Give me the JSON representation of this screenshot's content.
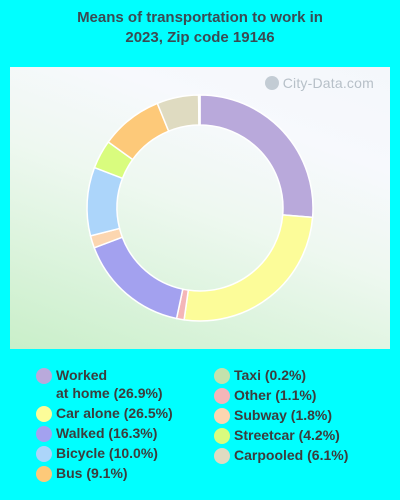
{
  "title_line1": "Means of transportation to work in",
  "title_line2": "2023, Zip code 19146",
  "watermark": "City-Data.com",
  "chart_data": {
    "type": "pie",
    "donut": true,
    "title": "Means of transportation to work in 2023, Zip code 19146",
    "unit": "%",
    "slices": [
      {
        "label": "Worked at home",
        "value": 26.9,
        "color": "#b9a9db"
      },
      {
        "label": "Car alone",
        "value": 26.5,
        "color": "#fcfc99"
      },
      {
        "label": "Other",
        "value": 1.1,
        "color": "#f4b6b8"
      },
      {
        "label": "Walked",
        "value": 16.3,
        "color": "#a3a1ef"
      },
      {
        "label": "Subway",
        "value": 1.8,
        "color": "#fcd6b0"
      },
      {
        "label": "Bicycle",
        "value": 10.0,
        "color": "#acd5fa"
      },
      {
        "label": "Streetcar",
        "value": 4.2,
        "color": "#d9fc7e"
      },
      {
        "label": "Bus",
        "value": 9.1,
        "color": "#fdc979"
      },
      {
        "label": "Carpooled",
        "value": 6.1,
        "color": "#dfdbc1"
      },
      {
        "label": "Taxi",
        "value": 0.2,
        "color": "#c3e2ac"
      }
    ]
  },
  "legend": {
    "left": [
      {
        "line1": "Worked",
        "line2": "at home (26.9%)",
        "color": "#b9a9db"
      },
      {
        "line1": "Car alone (26.5%)",
        "color": "#fcfc99"
      },
      {
        "line1": "Walked (16.3%)",
        "color": "#a3a1ef"
      },
      {
        "line1": "Bicycle (10.0%)",
        "color": "#acd5fa"
      },
      {
        "line1": "Bus (9.1%)",
        "color": "#fdc979"
      }
    ],
    "right": [
      {
        "line1": "Taxi (0.2%)",
        "color": "#c3e2ac"
      },
      {
        "line1": "Other (1.1%)",
        "color": "#f4b6b8"
      },
      {
        "line1": "Subway (1.8%)",
        "color": "#fcd6b0"
      },
      {
        "line1": "Streetcar (4.2%)",
        "color": "#d9fc7e"
      },
      {
        "line1": "Carpooled (6.1%)",
        "color": "#dfdbc1"
      }
    ]
  }
}
